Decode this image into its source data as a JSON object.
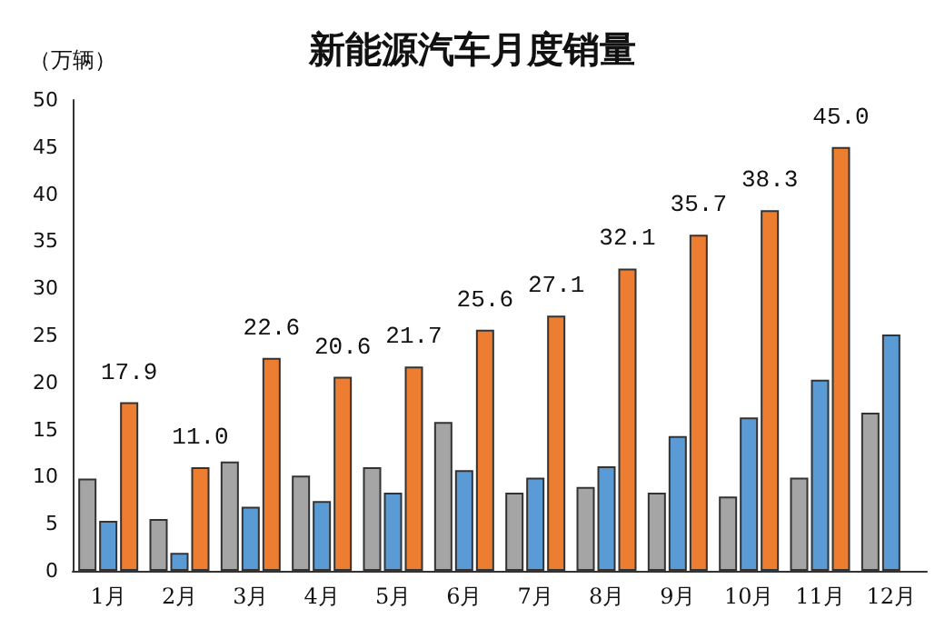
{
  "chart_data": {
    "type": "bar",
    "title": "新能源汽车月度销量",
    "ylabel": "（万辆）",
    "categories": [
      "1月",
      "2月",
      "3月",
      "4月",
      "5月",
      "6月",
      "7月",
      "8月",
      "9月",
      "10月",
      "11月",
      "12月"
    ],
    "series": [
      {
        "color": "#a5a5a5",
        "values": [
          9.8,
          5.5,
          11.6,
          10.1,
          11.0,
          15.8,
          8.3,
          8.9,
          8.3,
          7.9,
          9.9,
          16.8
        ]
      },
      {
        "color": "#5b9bd5",
        "values": [
          5.3,
          1.9,
          6.8,
          7.4,
          8.3,
          10.7,
          9.9,
          11.1,
          14.3,
          16.3,
          20.3,
          25.1
        ]
      },
      {
        "color": "#ed7d31",
        "values": [
          17.9,
          11.0,
          22.6,
          20.6,
          21.7,
          25.6,
          27.1,
          32.1,
          35.7,
          38.3,
          45.0,
          null
        ],
        "value_labels": [
          "17.9",
          "11.0",
          "22.6",
          "20.6",
          "21.7",
          "25.6",
          "27.1",
          "32.1",
          "35.7",
          "38.3",
          "45.0",
          null
        ]
      }
    ],
    "ylim": [
      0,
      50
    ],
    "yticks": [
      0,
      5,
      10,
      15,
      20,
      25,
      30,
      35,
      40,
      45,
      50
    ],
    "grid": false
  }
}
